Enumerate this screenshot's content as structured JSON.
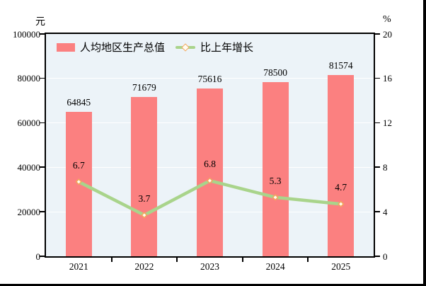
{
  "chart_data": {
    "type": "bar+line",
    "categories": [
      "2021",
      "2022",
      "2023",
      "2024",
      "2025"
    ],
    "series": [
      {
        "name": "人均地区生产总值",
        "type": "bar",
        "axis": "left",
        "values": [
          64845,
          71679,
          75616,
          78500,
          81574
        ],
        "value_labels": [
          "64845",
          "71679",
          "75616",
          "78500",
          "81574"
        ]
      },
      {
        "name": "比上年增长",
        "type": "line",
        "axis": "right",
        "values": [
          6.7,
          3.7,
          6.8,
          5.3,
          4.7
        ],
        "value_labels": [
          "6.7",
          "3.7",
          "6.8",
          "5.3",
          "4.7"
        ]
      }
    ],
    "left_axis": {
      "unit": "元",
      "min": 0,
      "max": 100000,
      "step": 20000,
      "tick_labels": [
        "100000",
        "80000",
        "60000",
        "40000",
        "20000",
        "0"
      ]
    },
    "right_axis": {
      "unit": "%",
      "min": 0,
      "max": 20,
      "step": 4,
      "tick_labels": [
        "20",
        "16",
        "12",
        "8",
        "4",
        "0"
      ]
    },
    "grid": true,
    "legend_position": "top-left-inside",
    "colors": {
      "bar": "#FB8080",
      "line": "#A9D48B",
      "marker_fill": "#FFFDF2",
      "marker_stroke": "#F1A75C",
      "plot_bg": "#ECF3F8",
      "grid": "#FFFFFF",
      "frame": "#000000",
      "text": "#000000"
    }
  }
}
